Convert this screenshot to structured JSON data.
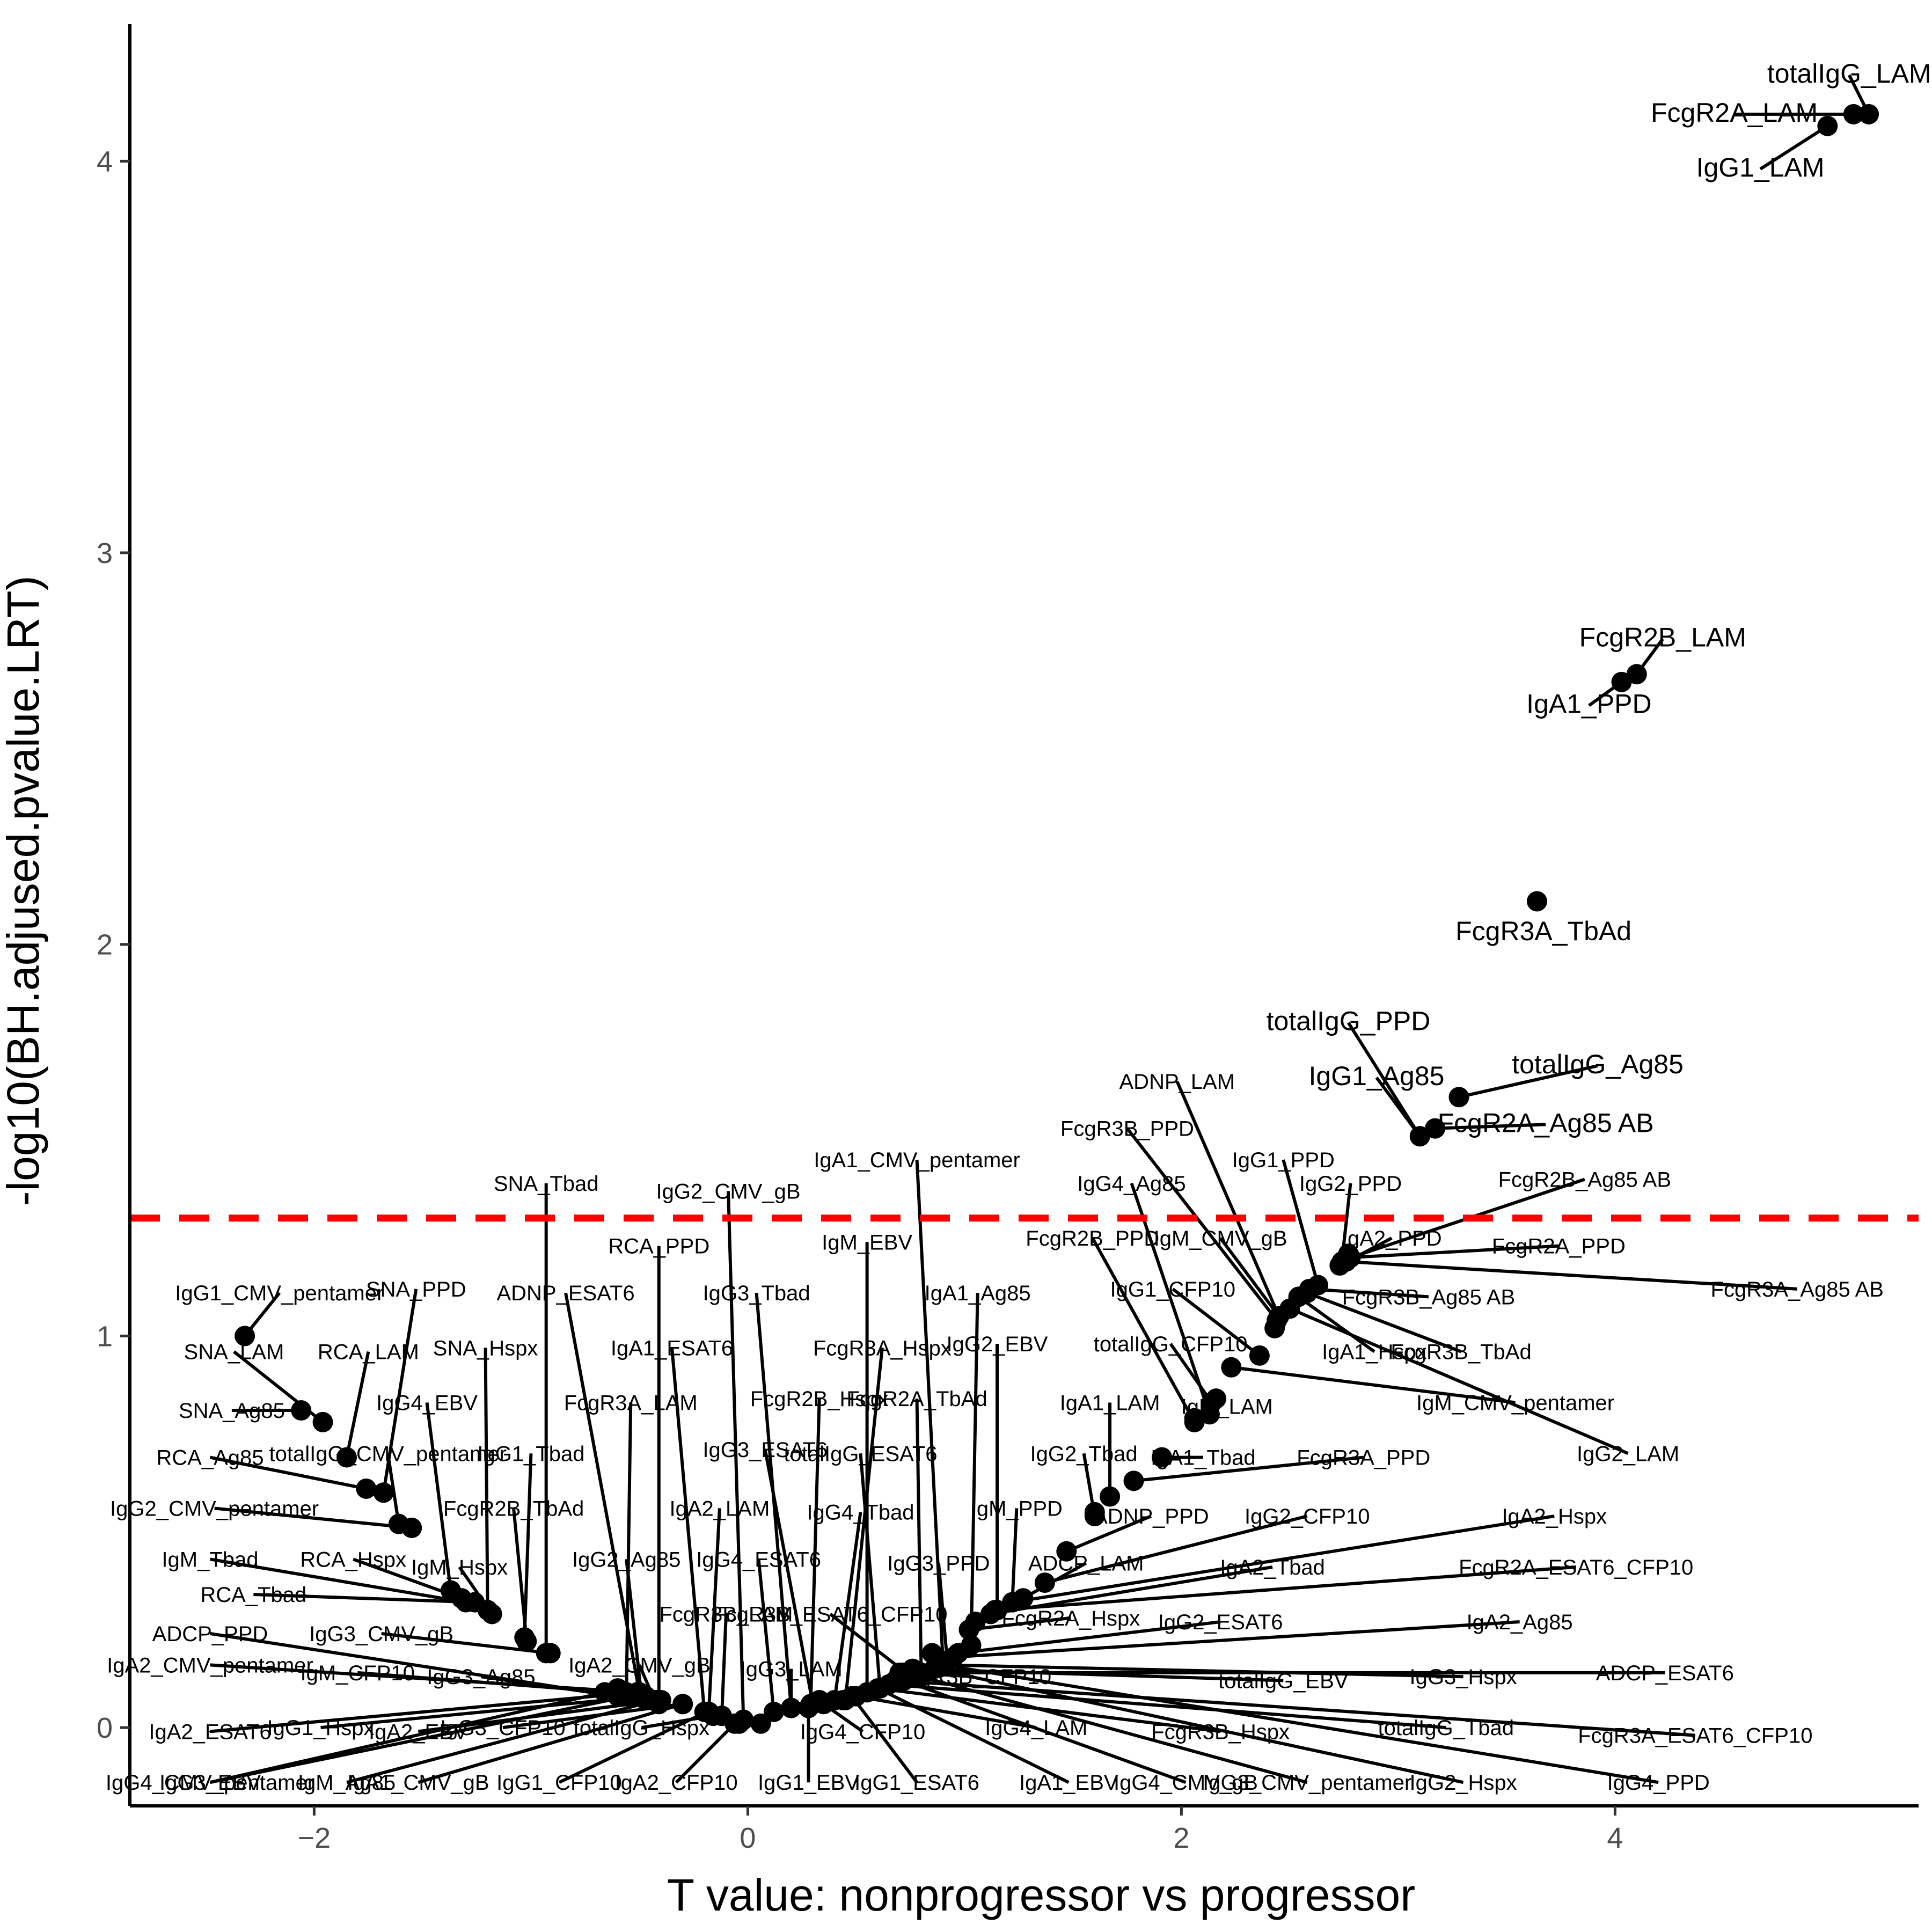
{
  "chart_data": {
    "type": "scatter",
    "title": "",
    "xlabel": "T value: nonprogressor vs progressor",
    "ylabel": "-log10(BH.adjused.pvalue.LRT)",
    "xlim": [
      -2.85,
      5.4
    ],
    "ylim": [
      -0.2,
      4.35
    ],
    "x_ticks": [
      -2,
      0,
      2,
      4
    ],
    "x_tick_labels": [
      "−2",
      "0",
      "2",
      "4"
    ],
    "y_ticks": [
      0,
      1,
      2,
      3,
      4
    ],
    "y_tick_labels": [
      "0",
      "1",
      "2",
      "3",
      "4"
    ],
    "threshold": 1.301,
    "threshold_color": "#ff0000",
    "point_color": "#000000",
    "grid": false,
    "legend": "none",
    "points": [
      {
        "label": "totalIgG_LAM",
        "x": 5.17,
        "y": 4.12,
        "lx": 5.08,
        "ly": 4.22,
        "size": "big"
      },
      {
        "label": "FcgR2A_LAM",
        "x": 5.1,
        "y": 4.12,
        "lx": 4.55,
        "ly": 4.12,
        "size": "big"
      },
      {
        "label": "IgG1_LAM",
        "x": 4.98,
        "y": 4.09,
        "lx": 4.67,
        "ly": 3.98,
        "size": "big"
      },
      {
        "label": "FcgR2B_LAM",
        "x": 4.1,
        "y": 2.69,
        "lx": 4.22,
        "ly": 2.78,
        "size": "big"
      },
      {
        "label": "IgA1_PPD",
        "x": 4.03,
        "y": 2.67,
        "lx": 3.88,
        "ly": 2.61,
        "size": "big"
      },
      {
        "label": "FcgR3A_TbAd",
        "x": 3.64,
        "y": 2.11,
        "lx": 3.67,
        "ly": 2.03,
        "size": "big"
      },
      {
        "label": "totalIgG_Ag85",
        "x": 3.28,
        "y": 1.61,
        "lx": 3.92,
        "ly": 1.69,
        "size": "big"
      },
      {
        "label": "totalIgG_PPD",
        "x": 3.1,
        "y": 1.51,
        "lx": 2.77,
        "ly": 1.8,
        "size": "big"
      },
      {
        "label": "FcgR2A_Ag85 AB",
        "x": 3.17,
        "y": 1.53,
        "lx": 3.68,
        "ly": 1.54,
        "size": "big"
      },
      {
        "label": "IgG1_Ag85",
        "x": 3.1,
        "y": 1.51,
        "lx": 2.9,
        "ly": 1.66,
        "size": "big"
      },
      {
        "label": "ADNP_LAM",
        "x": 2.45,
        "y": 1.05,
        "lx": 1.98,
        "ly": 1.65
      },
      {
        "label": "FcgR3B_PPD",
        "x": 2.44,
        "y": 1.04,
        "lx": 1.75,
        "ly": 1.53
      },
      {
        "label": "IgG1_PPD",
        "x": 2.63,
        "y": 1.13,
        "lx": 2.47,
        "ly": 1.45
      },
      {
        "label": "IgG2_PPD",
        "x": 2.74,
        "y": 1.19,
        "lx": 2.78,
        "ly": 1.39
      },
      {
        "label": "FcgR2B_Ag85 AB",
        "x": 2.78,
        "y": 1.2,
        "lx": 3.86,
        "ly": 1.4
      },
      {
        "label": "IgA1_CMV_pentamer",
        "x": 0.9,
        "y": 0.17,
        "lx": 0.78,
        "ly": 1.45
      },
      {
        "label": "IgG2_CMV_gB",
        "x": -0.02,
        "y": 0.02,
        "lx": -0.09,
        "ly": 1.37
      },
      {
        "label": "SNA_Tbad",
        "x": -0.93,
        "y": 0.19,
        "lx": -0.93,
        "ly": 1.39
      },
      {
        "label": "IgG4_Ag85",
        "x": 2.13,
        "y": 0.8,
        "lx": 1.77,
        "ly": 1.39
      },
      {
        "label": "IgM_CMV_gB",
        "x": 2.45,
        "y": 1.05,
        "lx": 2.18,
        "ly": 1.25
      },
      {
        "label": "IgA2_PPD",
        "x": 2.73,
        "y": 1.18,
        "lx": 2.97,
        "ly": 1.25
      },
      {
        "label": "FcgR2A_PPD",
        "x": 2.77,
        "y": 1.2,
        "lx": 3.74,
        "ly": 1.23
      },
      {
        "label": "FcgR3A_Ag85 AB",
        "x": 2.76,
        "y": 1.19,
        "lx": 4.84,
        "ly": 1.12
      },
      {
        "label": "FcgR2B_PPD",
        "x": 2.06,
        "y": 0.78,
        "lx": 1.59,
        "ly": 1.25
      },
      {
        "label": "IgM_EBV",
        "x": 0.55,
        "y": 0.09,
        "lx": 0.55,
        "ly": 1.24
      },
      {
        "label": "RCA_PPD",
        "x": -0.41,
        "y": 0.06,
        "lx": -0.41,
        "ly": 1.23
      },
      {
        "label": "IgA1_Ag85",
        "x": 1.03,
        "y": 0.21,
        "lx": 1.06,
        "ly": 1.11
      },
      {
        "label": "IgG3_Tbad",
        "x": 0.2,
        "y": 0.05,
        "lx": 0.04,
        "ly": 1.11
      },
      {
        "label": "ADNP_ESAT6",
        "x": -0.5,
        "y": 0.09,
        "lx": -0.84,
        "ly": 1.11
      },
      {
        "label": "SNA_PPD",
        "x": -1.68,
        "y": 0.6,
        "lx": -1.53,
        "ly": 1.12
      },
      {
        "label": "IgG1_CMV_pentamer",
        "x": -2.32,
        "y": 1.0,
        "lx": -2.16,
        "ly": 1.11
      },
      {
        "label": "IgG1_CFP10",
        "x": 2.36,
        "y": 0.95,
        "lx": 1.96,
        "ly": 1.12
      },
      {
        "label": "FcgR3B_Ag85 AB",
        "x": 2.59,
        "y": 1.12,
        "lx": 3.14,
        "ly": 1.1
      },
      {
        "label": "FcgR3A_Hspx",
        "x": 0.45,
        "y": 0.07,
        "lx": 0.62,
        "ly": 0.97
      },
      {
        "label": "IgA1_ESAT6",
        "x": -0.2,
        "y": 0.04,
        "lx": -0.35,
        "ly": 0.97
      },
      {
        "label": "SNA_Hspx",
        "x": -1.2,
        "y": 0.3,
        "lx": -1.21,
        "ly": 0.97
      },
      {
        "label": "RCA_LAM",
        "x": -1.85,
        "y": 0.69,
        "lx": -1.75,
        "ly": 0.96
      },
      {
        "label": "SNA_LAM",
        "x": -1.96,
        "y": 0.78,
        "lx": -2.37,
        "ly": 0.96
      },
      {
        "label": "IgG2_EBV",
        "x": 1.15,
        "y": 0.3,
        "lx": 1.15,
        "ly": 0.98
      },
      {
        "label": "totalIgG_CFP10",
        "x": 2.14,
        "y": 0.83,
        "lx": 1.95,
        "ly": 0.98
      },
      {
        "label": "IgA1_Hspx",
        "x": 2.54,
        "y": 1.1,
        "lx": 2.89,
        "ly": 0.96
      },
      {
        "label": "FcgR3B_TbAd",
        "x": 2.58,
        "y": 1.11,
        "lx": 3.29,
        "ly": 0.96
      },
      {
        "label": "IgM_CMV_pentamer",
        "x": 2.23,
        "y": 0.92,
        "lx": 3.54,
        "ly": 0.83
      },
      {
        "label": "IgM_LAM",
        "x": 2.16,
        "y": 0.84,
        "lx": 2.21,
        "ly": 0.82
      },
      {
        "label": "IgG2_LAM",
        "x": 2.5,
        "y": 1.07,
        "lx": 4.06,
        "ly": 0.7
      },
      {
        "label": "FcgR3A_LAM",
        "x": -0.56,
        "y": 0.09,
        "lx": -0.54,
        "ly": 0.83
      },
      {
        "label": "FcgR2B_Hspx",
        "x": 0.29,
        "y": 0.06,
        "lx": 0.33,
        "ly": 0.84
      },
      {
        "label": "FcgR2A_TbAd",
        "x": 0.8,
        "y": 0.14,
        "lx": 0.78,
        "ly": 0.84
      },
      {
        "label": "IgA1_LAM",
        "x": 1.67,
        "y": 0.59,
        "lx": 1.67,
        "ly": 0.83
      },
      {
        "label": "IgG4_EBV",
        "x": -1.37,
        "y": 0.35,
        "lx": -1.48,
        "ly": 0.83
      },
      {
        "label": "SNA_Ag85",
        "x": -2.06,
        "y": 0.81,
        "lx": -2.38,
        "ly": 0.81
      },
      {
        "label": "RCA_Ag85",
        "x": -1.76,
        "y": 0.61,
        "lx": -2.48,
        "ly": 0.69
      },
      {
        "label": "totalIgG_CMV_pentamer",
        "x": -1.61,
        "y": 0.52,
        "lx": -1.66,
        "ly": 0.7
      },
      {
        "label": "IgG1_Tbad",
        "x": -1.03,
        "y": 0.23,
        "lx": -1.0,
        "ly": 0.7
      },
      {
        "label": "IgG3_ESAT6",
        "x": 0.3,
        "y": 0.06,
        "lx": 0.08,
        "ly": 0.71
      },
      {
        "label": "totalIgG_ESAT6",
        "x": 0.61,
        "y": 0.1,
        "lx": 0.52,
        "ly": 0.7
      },
      {
        "label": "IgG2_Tbad",
        "x": 1.6,
        "y": 0.54,
        "lx": 1.55,
        "ly": 0.7
      },
      {
        "label": "IgA1_Tbad",
        "x": 1.91,
        "y": 0.69,
        "lx": 2.1,
        "ly": 0.69
      },
      {
        "label": "FcgR3A_PPD",
        "x": 1.78,
        "y": 0.63,
        "lx": 2.84,
        "ly": 0.69
      },
      {
        "label": "IgG2_CMV_pentamer",
        "x": -1.55,
        "y": 0.51,
        "lx": -2.46,
        "ly": 0.56
      },
      {
        "label": "FcgR2B_TbAd",
        "x": -1.02,
        "y": 0.22,
        "lx": -1.08,
        "ly": 0.56
      },
      {
        "label": "IgA2_LAM",
        "x": -0.18,
        "y": 0.04,
        "lx": -0.13,
        "ly": 0.56
      },
      {
        "label": "IgG4_Tbad",
        "x": 0.4,
        "y": 0.07,
        "lx": 0.52,
        "ly": 0.55
      },
      {
        "label": "IgM_PPD",
        "x": 1.22,
        "y": 0.32,
        "lx": 1.24,
        "ly": 0.56
      },
      {
        "label": "ADNP_PPD",
        "x": 1.47,
        "y": 0.45,
        "lx": 1.86,
        "ly": 0.54
      },
      {
        "label": "IgG2_CFP10",
        "x": 1.37,
        "y": 0.37,
        "lx": 2.58,
        "ly": 0.54
      },
      {
        "label": "IgA2_Hspx",
        "x": 1.22,
        "y": 0.32,
        "lx": 3.72,
        "ly": 0.54
      },
      {
        "label": "IgM_Tbad",
        "x": -1.3,
        "y": 0.32,
        "lx": -2.48,
        "ly": 0.43
      },
      {
        "label": "RCA_Hspx",
        "x": -1.32,
        "y": 0.33,
        "lx": -1.82,
        "ly": 0.43
      },
      {
        "label": "IgM_Hspx",
        "x": -1.18,
        "y": 0.29,
        "lx": -1.33,
        "ly": 0.41
      },
      {
        "label": "IgG2_Ag85",
        "x": -0.49,
        "y": 0.08,
        "lx": -0.56,
        "ly": 0.43
      },
      {
        "label": "IgG4_ESAT6",
        "x": 0.12,
        "y": 0.04,
        "lx": 0.05,
        "ly": 0.43
      },
      {
        "label": "IgG3_PPD",
        "x": 0.92,
        "y": 0.17,
        "lx": 0.88,
        "ly": 0.42
      },
      {
        "label": "ADCP_LAM",
        "x": 1.27,
        "y": 0.33,
        "lx": 1.56,
        "ly": 0.42
      },
      {
        "label": "IgA2_Tbad",
        "x": 1.12,
        "y": 0.29,
        "lx": 2.42,
        "ly": 0.41
      },
      {
        "label": "FcgR2A_ESAT6_CFP10",
        "x": 1.15,
        "y": 0.3,
        "lx": 3.82,
        "ly": 0.41
      },
      {
        "label": "RCA_Tbad",
        "x": -1.26,
        "y": 0.32,
        "lx": -2.28,
        "ly": 0.34
      },
      {
        "label": "FcgR3B_LAM",
        "x": -0.12,
        "y": 0.03,
        "lx": -0.1,
        "ly": 0.29
      },
      {
        "label": "FcgR3B_ESAT6_CFP10",
        "x": 0.73,
        "y": 0.14,
        "lx": 0.38,
        "ly": 0.29
      },
      {
        "label": "FcgR2A_Hspx",
        "x": 1.02,
        "y": 0.25,
        "lx": 1.49,
        "ly": 0.28
      },
      {
        "label": "IgG2_ESAT6",
        "x": 0.97,
        "y": 0.19,
        "lx": 2.18,
        "ly": 0.27
      },
      {
        "label": "IgA2_Ag85",
        "x": 0.95,
        "y": 0.18,
        "lx": 3.56,
        "ly": 0.27
      },
      {
        "label": "ADCP_PPD",
        "x": -0.6,
        "y": 0.08,
        "lx": -2.48,
        "ly": 0.24
      },
      {
        "label": "IgG3_CMV_gB",
        "x": -0.91,
        "y": 0.19,
        "lx": -1.69,
        "ly": 0.24
      },
      {
        "label": "IgA2_CMV_gB",
        "x": -0.43,
        "y": 0.07,
        "lx": -0.5,
        "ly": 0.16
      },
      {
        "label": "IgG3_LAM",
        "x": 0.2,
        "y": 0.05,
        "lx": 0.2,
        "ly": 0.15
      },
      {
        "label": "IgA2_CMV_pentamer",
        "x": -0.51,
        "y": 0.09,
        "lx": -2.48,
        "ly": 0.16
      },
      {
        "label": "IgM_CFP10",
        "x": -0.62,
        "y": 0.09,
        "lx": -1.8,
        "ly": 0.14
      },
      {
        "label": "IgG3_Ag85",
        "x": -0.6,
        "y": 0.08,
        "lx": -1.23,
        "ly": 0.13
      },
      {
        "label": "FcgR3B_CFP10",
        "x": 0.75,
        "y": 0.14,
        "lx": 1.04,
        "ly": 0.13
      },
      {
        "label": "totalIgG_EBV",
        "x": 0.76,
        "y": 0.15,
        "lx": 2.47,
        "ly": 0.12
      },
      {
        "label": "IgG3_Hspx",
        "x": 0.9,
        "y": 0.16,
        "lx": 3.3,
        "ly": 0.13
      },
      {
        "label": "ADCP_ESAT6",
        "x": 0.72,
        "y": 0.14,
        "lx": 4.23,
        "ly": 0.14
      },
      {
        "label": "IgA2_ESAT6",
        "x": -0.51,
        "y": 0.09,
        "lx": -2.48,
        "ly": -0.01
      },
      {
        "label": "IgG1_Hspx",
        "x": -0.47,
        "y": 0.08,
        "lx": -1.97,
        "ly": 0.0
      },
      {
        "label": "IgA2_EBV",
        "x": -0.4,
        "y": 0.07,
        "lx": -1.52,
        "ly": -0.01
      },
      {
        "label": "IgG3_CFP10",
        "x": -0.3,
        "y": 0.06,
        "lx": -1.13,
        "ly": 0.0
      },
      {
        "label": "totalIgG_Hspx",
        "x": -0.16,
        "y": 0.03,
        "lx": -0.49,
        "ly": 0.0
      },
      {
        "label": "IgG4_CFP10",
        "x": 0.35,
        "y": 0.06,
        "lx": 0.53,
        "ly": -0.01
      },
      {
        "label": "IgG4_LAM",
        "x": 0.5,
        "y": 0.08,
        "lx": 1.33,
        "ly": 0.0
      },
      {
        "label": "FcgR3B_Hspx",
        "x": 0.6,
        "y": 0.1,
        "lx": 2.18,
        "ly": -0.01
      },
      {
        "label": "totalIgG_Tbad",
        "x": 0.65,
        "y": 0.11,
        "lx": 3.22,
        "ly": 0.0
      },
      {
        "label": "FcgR3A_ESAT6_CFP10",
        "x": 0.68,
        "y": 0.12,
        "lx": 4.37,
        "ly": -0.02
      },
      {
        "label": "IgG3_EBV",
        "x": -0.66,
        "y": 0.09,
        "lx": -2.48,
        "ly": -0.14
      },
      {
        "label": "IgG4_CMV_pentamer",
        "x": -0.55,
        "y": 0.08,
        "lx": -2.48,
        "ly": -0.14
      },
      {
        "label": "IgM_Ag85",
        "x": -0.42,
        "y": 0.07,
        "lx": -1.85,
        "ly": -0.14
      },
      {
        "label": "IgA1_CMV_gB",
        "x": -0.3,
        "y": 0.06,
        "lx": -1.52,
        "ly": -0.14
      },
      {
        "label": "IgG1_CFP10",
        "x": -0.19,
        "y": 0.04,
        "lx": -0.87,
        "ly": -0.14
      },
      {
        "label": "IgA2_CFP10",
        "x": -0.06,
        "y": 0.01,
        "lx": -0.33,
        "ly": -0.14
      },
      {
        "label": "IgG1_EBV",
        "x": 0.28,
        "y": 0.05,
        "lx": 0.28,
        "ly": -0.14
      },
      {
        "label": "IgG1_ESAT6",
        "x": 0.48,
        "y": 0.08,
        "lx": 0.78,
        "ly": -0.14
      },
      {
        "label": "IgA1_EBV",
        "x": 0.6,
        "y": 0.1,
        "lx": 1.48,
        "ly": -0.14
      },
      {
        "label": "IgG4_CMV_gB",
        "x": 0.72,
        "y": 0.12,
        "lx": 2.02,
        "ly": -0.14
      },
      {
        "label": "IgG3_CMV_pentamer",
        "x": 0.8,
        "y": 0.13,
        "lx": 2.58,
        "ly": -0.14
      },
      {
        "label": "IgG2_Hspx",
        "x": 0.86,
        "y": 0.15,
        "lx": 3.3,
        "ly": -0.14
      },
      {
        "label": "IgG4_PPD",
        "x": 0.9,
        "y": 0.16,
        "lx": 4.2,
        "ly": -0.14
      }
    ],
    "extra_points": [
      {
        "x": 2.77,
        "y": 1.21
      },
      {
        "x": 2.43,
        "y": 1.02
      },
      {
        "x": 2.06,
        "y": 0.79
      },
      {
        "x": 1.6,
        "y": 0.55
      },
      {
        "x": 1.14,
        "y": 0.3
      },
      {
        "x": 1.05,
        "y": 0.27
      },
      {
        "x": 0.85,
        "y": 0.19
      },
      {
        "x": 0.7,
        "y": 0.14
      },
      {
        "x": -0.47,
        "y": 0.07
      },
      {
        "x": -0.6,
        "y": 0.1
      },
      {
        "x": 0.2,
        "y": 0.05
      },
      {
        "x": -0.04,
        "y": 0.01
      },
      {
        "x": 0.06,
        "y": 0.01
      },
      {
        "x": 0.33,
        "y": 0.07
      },
      {
        "x": 0.44,
        "y": 0.07
      }
    ]
  }
}
